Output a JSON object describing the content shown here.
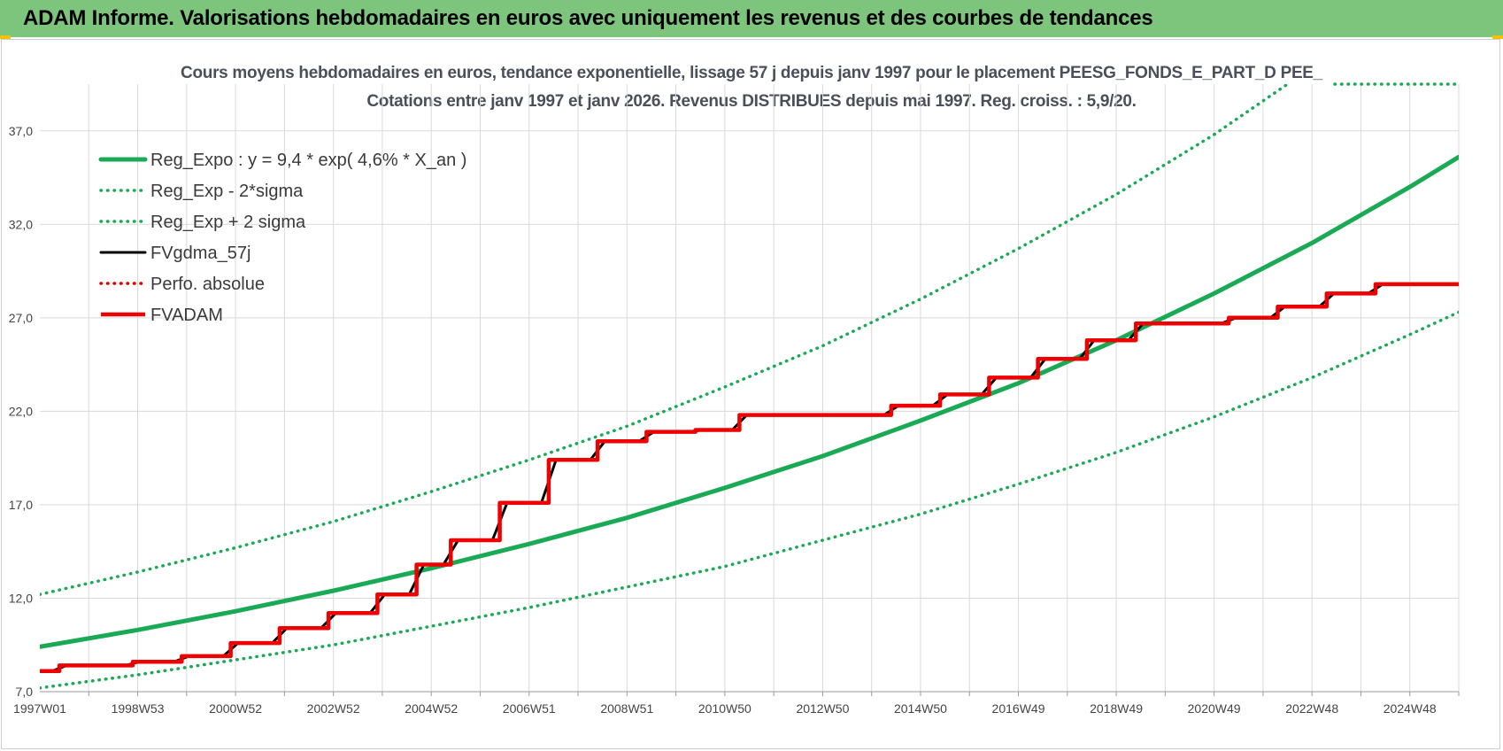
{
  "header": {
    "title": "ADAM Informe. Valorisations hebdomadaires en euros avec uniquement les revenus et des courbes de tendances"
  },
  "colors": {
    "banner": "#7dc57d",
    "trend": "#1aaa55",
    "fvgdma": "#000000",
    "perfo": "#e00000",
    "fvadam": "#ee0000",
    "grid": "#d9d9d9"
  },
  "chart_data": {
    "type": "line",
    "title": "Cours moyens hebdomadaires en euros, tendance exponentielle, lissage 57 j depuis janv 1997 pour le placement PEESG_FONDS_E_PART_D PEE_",
    "subtitle": "Cotations entre janv 1997 et janv 2026. Revenus DISTRIBUES depuis mai 1997. Reg. croiss. : 5,9/20.",
    "xlabel": "",
    "ylabel": "",
    "x_unit": "years since 1997W01",
    "xlim": [
      0,
      29
    ],
    "ylim": [
      7.0,
      39.5
    ],
    "yticks": [
      7.0,
      12.0,
      17.0,
      22.0,
      27.0,
      32.0,
      37.0
    ],
    "ytick_labels": [
      "7,0",
      "12,0",
      "17,0",
      "22,0",
      "27,0",
      "32,0",
      "37,0"
    ],
    "xtick_labels": [
      "1997W01",
      "1998W53",
      "2000W52",
      "2002W52",
      "2004W52",
      "2006W51",
      "2008W51",
      "2010W50",
      "2012W50",
      "2014W50",
      "2016W49",
      "2018W49",
      "2020W49",
      "2022W48",
      "2024W48"
    ],
    "grid": true,
    "legend_position": "top-left",
    "series": [
      {
        "name": "Reg_Expo : y = 9,4 * exp( 4,6% *  X_an )",
        "style": "solid-thick",
        "color": "#1aaa55",
        "x": [
          0,
          2,
          4,
          6,
          8,
          10,
          12,
          14,
          16,
          18,
          20,
          22,
          24,
          26,
          28,
          29
        ],
        "y": [
          9.4,
          10.3,
          11.3,
          12.4,
          13.6,
          14.9,
          16.3,
          17.9,
          19.6,
          21.5,
          23.5,
          25.8,
          28.3,
          31.0,
          34.0,
          35.6
        ]
      },
      {
        "name": "Reg_Exp - 2*sigma",
        "style": "dotted",
        "color": "#1aaa55",
        "x": [
          0,
          2,
          4,
          6,
          8,
          10,
          12,
          14,
          16,
          18,
          20,
          22,
          24,
          26,
          28,
          29
        ],
        "y": [
          7.2,
          7.9,
          8.7,
          9.5,
          10.5,
          11.5,
          12.6,
          13.7,
          15.1,
          16.5,
          18.1,
          19.8,
          21.7,
          23.8,
          26.1,
          27.3
        ]
      },
      {
        "name": "Reg_Exp + 2 sigma",
        "style": "dotted",
        "color": "#1aaa55",
        "x": [
          0,
          2,
          4,
          6,
          8,
          10,
          12,
          14,
          16,
          18,
          20,
          22,
          24,
          25.5
        ],
        "y": [
          12.2,
          13.4,
          14.7,
          16.1,
          17.7,
          19.4,
          21.2,
          23.3,
          25.5,
          28.0,
          30.7,
          33.6,
          36.8,
          39.5
        ]
      },
      {
        "name": "FVgdma_57j",
        "style": "solid",
        "color": "#000000",
        "steps_x": [
          0,
          0.4,
          1.9,
          2.9,
          3.9,
          4.9,
          5.9,
          6.9,
          7.7,
          8.4,
          9.4,
          10.4,
          11.4,
          12.4,
          13.4,
          14.3,
          15.4,
          17.4,
          18.4,
          19.4,
          20.4,
          21.4,
          22.4,
          23.3,
          24.3,
          25.3,
          26.3,
          27.3,
          29
        ],
        "steps_y": [
          8.1,
          8.4,
          8.6,
          8.9,
          9.6,
          10.4,
          11.2,
          12.2,
          13.8,
          15.1,
          17.1,
          19.4,
          20.4,
          20.9,
          21.0,
          21.8,
          21.8,
          22.3,
          22.9,
          23.8,
          24.8,
          25.8,
          26.7,
          26.7,
          27.0,
          27.6,
          28.3,
          28.8,
          28.8
        ]
      },
      {
        "name": "Perfo. absolue",
        "style": "dotted",
        "color": "#e00000",
        "steps_x": [
          0,
          0.4,
          1.9,
          2.9,
          3.9,
          4.9,
          5.9,
          6.9,
          7.7,
          8.4,
          9.4,
          10.4,
          11.4,
          12.4,
          13.4,
          14.3,
          15.4,
          17.4,
          18.4,
          19.4,
          20.4,
          21.4,
          22.4,
          23.3,
          24.3,
          25.3,
          26.3,
          27.3,
          29
        ],
        "steps_y": [
          8.1,
          8.4,
          8.6,
          8.9,
          9.6,
          10.4,
          11.2,
          12.2,
          13.8,
          15.1,
          17.1,
          19.4,
          20.4,
          20.9,
          21.0,
          21.8,
          21.8,
          22.3,
          22.9,
          23.8,
          24.8,
          25.8,
          26.7,
          26.7,
          27.0,
          27.6,
          28.3,
          28.8,
          28.8
        ]
      },
      {
        "name": "FVADAM",
        "style": "step-thick",
        "color": "#ee0000",
        "steps_x": [
          0,
          0.4,
          1.9,
          2.9,
          3.9,
          4.9,
          5.9,
          6.9,
          7.7,
          8.4,
          9.4,
          10.4,
          11.4,
          12.4,
          13.4,
          14.3,
          15.4,
          17.4,
          18.4,
          19.4,
          20.4,
          21.4,
          22.4,
          23.3,
          24.3,
          25.3,
          26.3,
          27.3,
          29
        ],
        "steps_y": [
          8.1,
          8.4,
          8.6,
          8.9,
          9.6,
          10.4,
          11.2,
          12.2,
          13.8,
          15.1,
          17.1,
          19.4,
          20.4,
          20.9,
          21.0,
          21.8,
          21.8,
          22.3,
          22.9,
          23.8,
          24.8,
          25.8,
          26.7,
          26.7,
          27.0,
          27.6,
          28.3,
          28.8,
          28.8
        ]
      }
    ]
  }
}
